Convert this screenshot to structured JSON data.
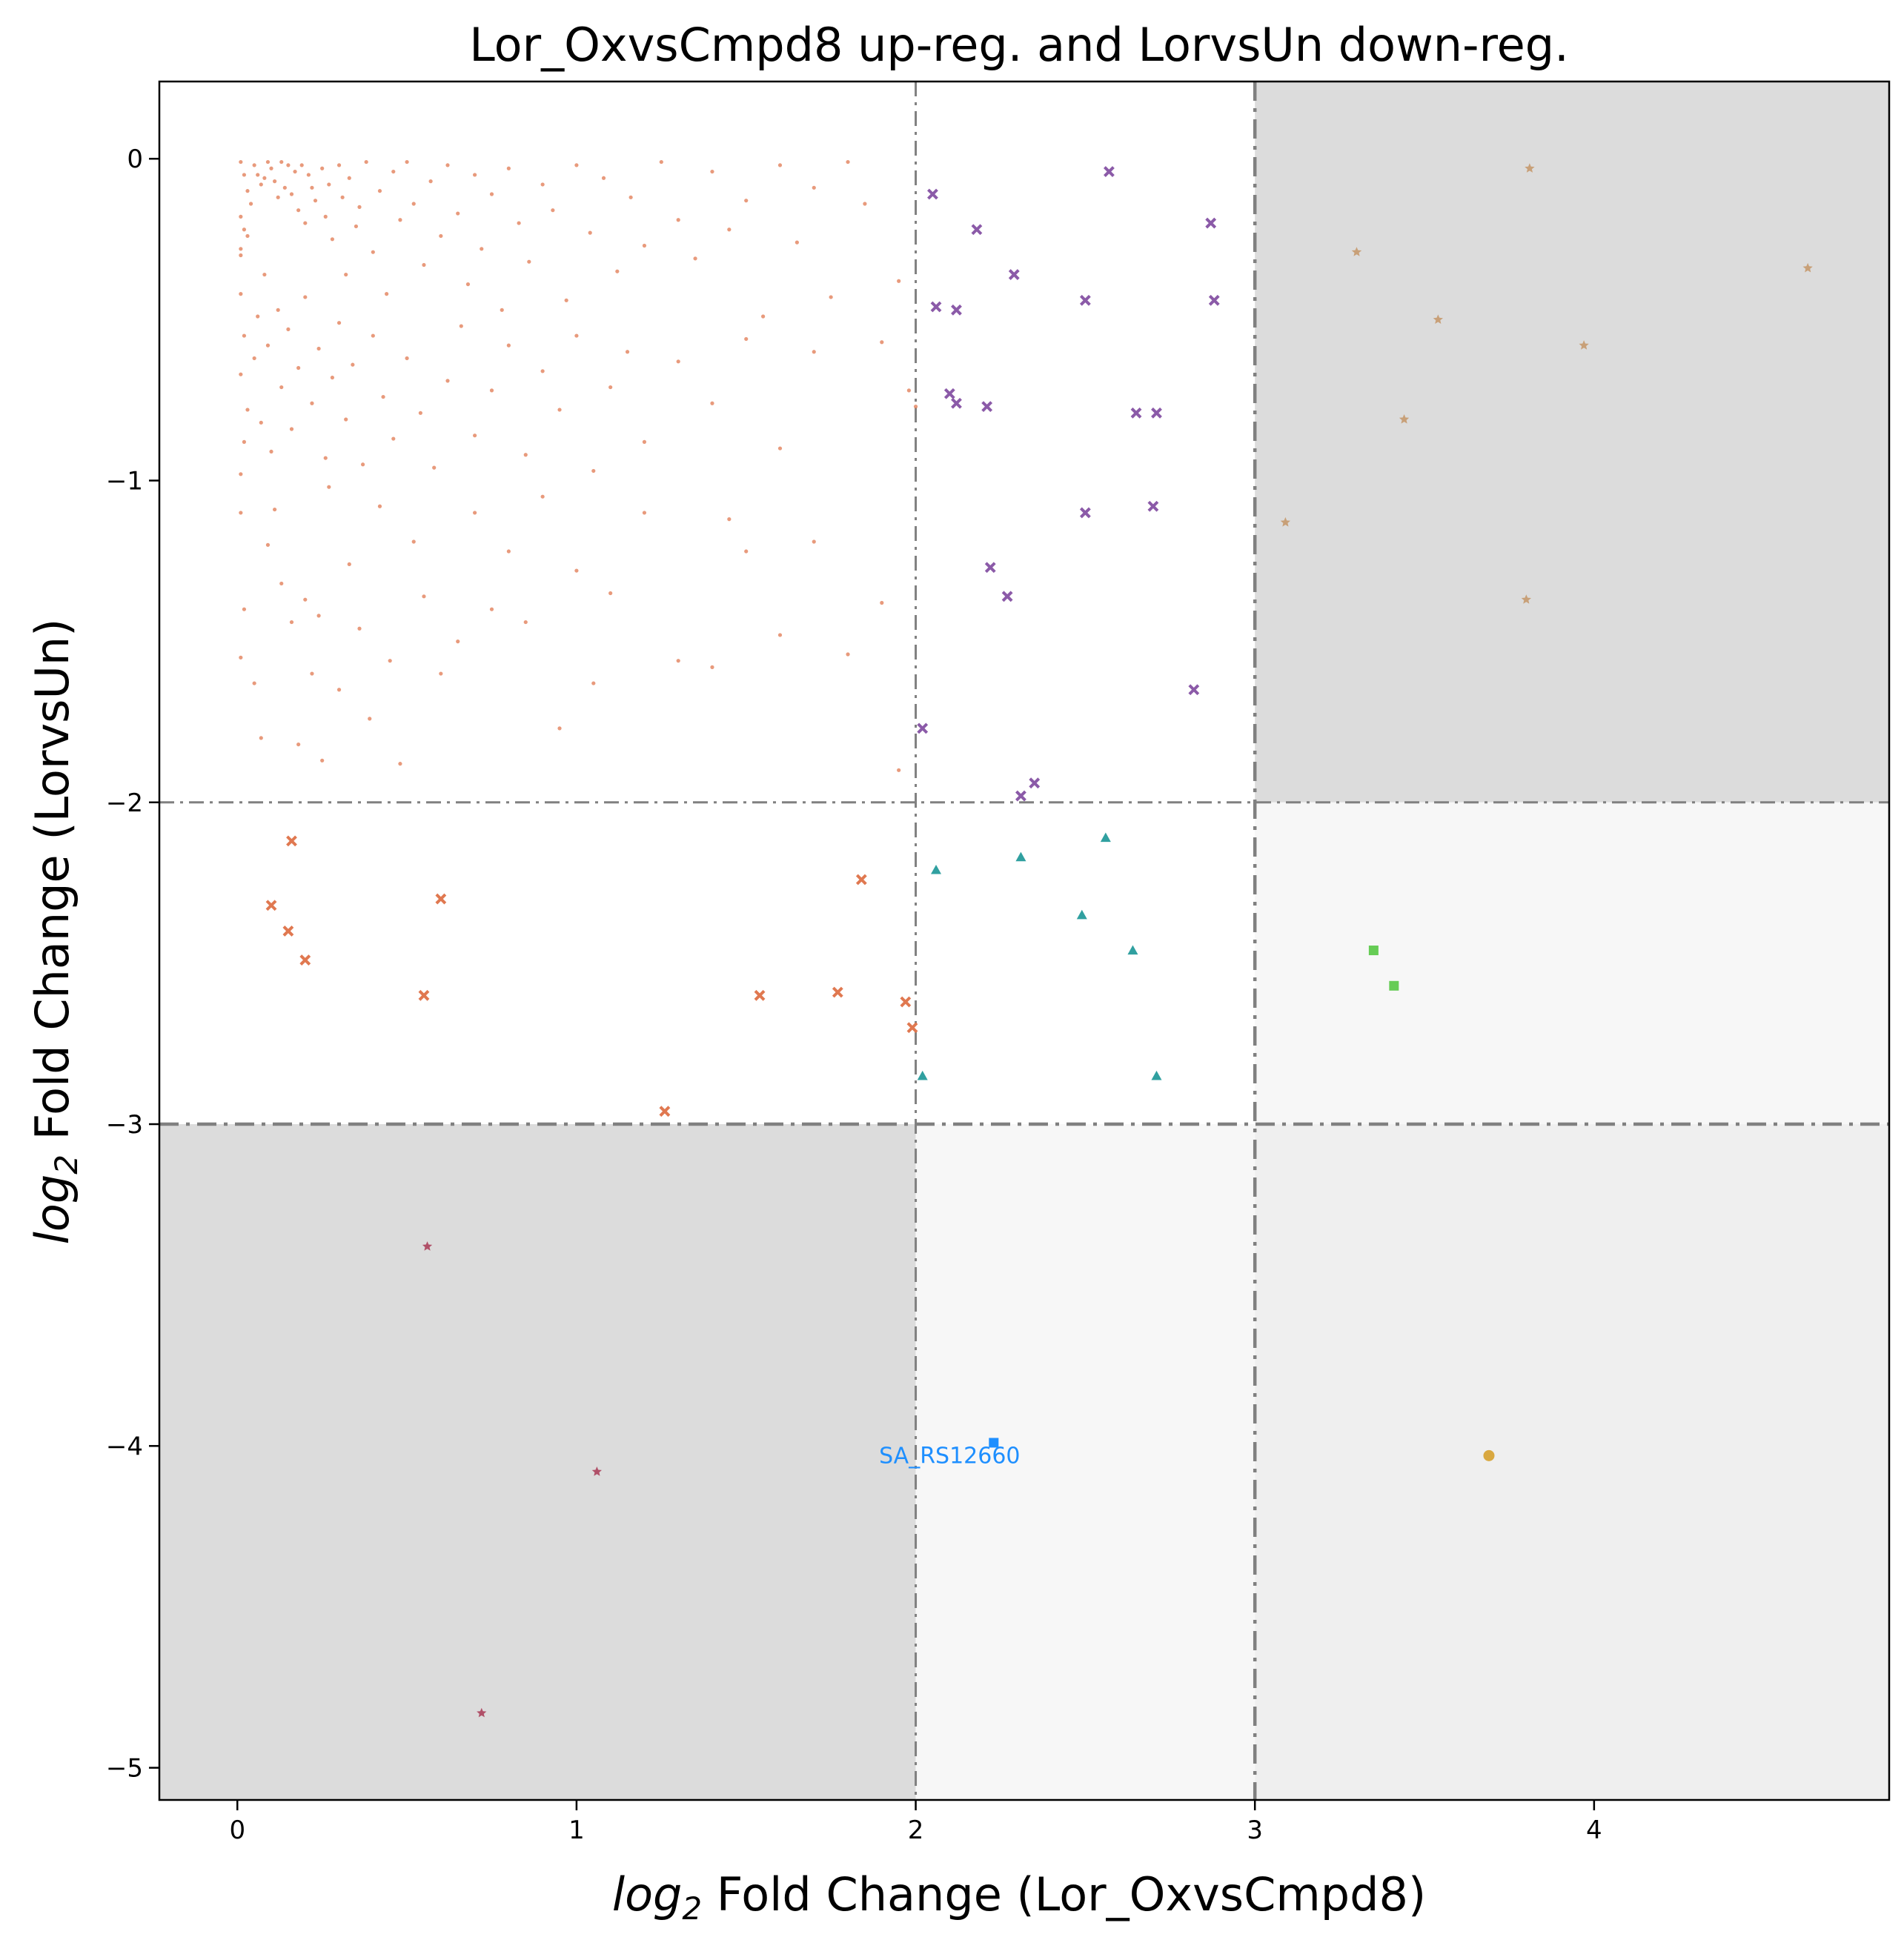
{
  "chart_data": {
    "type": "scatter",
    "title": "Lor_OxvsCmpd8 up-reg. and LorvsUn down-reg.",
    "xlabel_italic": "log",
    "xlabel_sub": "2",
    "xlabel_rest": " Fold Change (Lor_OxvsCmpd8)",
    "ylabel_italic": "log",
    "ylabel_sub": "2",
    "ylabel_rest": " Fold Change (LorvsUn)",
    "xlim": [
      -0.23,
      4.87
    ],
    "ylim": [
      -5.1,
      0.24
    ],
    "xticks": [
      0,
      1,
      2,
      3,
      4
    ],
    "xtick_labels": [
      "0",
      "1",
      "2",
      "3",
      "4"
    ],
    "yticks": [
      0,
      -1,
      -2,
      -3,
      -4,
      -5
    ],
    "ytick_labels": [
      "0",
      "−1",
      "−2",
      "−3",
      "−4",
      "−5"
    ],
    "thresholds": {
      "x": [
        2,
        3
      ],
      "y": [
        -2,
        -3
      ]
    },
    "grid": false,
    "region_colors": {
      "dark": "#dcdcdc",
      "mid": "#efefef",
      "light": "#f7f7f7"
    },
    "threshold_color": "#808080",
    "annotations": [
      {
        "text": "SA_RS12660",
        "x": 2.1,
        "y": -4.03
      }
    ],
    "series": [
      {
        "marker": "dot",
        "color": "#e07850",
        "points": [
          [
            0.01,
            -0.01
          ],
          [
            0.02,
            -0.05
          ],
          [
            0.03,
            -0.1
          ],
          [
            0.01,
            -0.18
          ],
          [
            0.02,
            -0.22
          ],
          [
            0.01,
            -0.28
          ],
          [
            0.01,
            -0.3
          ],
          [
            0.03,
            -0.24
          ],
          [
            0.04,
            -0.14
          ],
          [
            0.05,
            -0.02
          ],
          [
            0.06,
            -0.05
          ],
          [
            0.07,
            -0.08
          ],
          [
            0.08,
            -0.06
          ],
          [
            0.09,
            -0.01
          ],
          [
            0.1,
            -0.03
          ],
          [
            0.11,
            -0.07
          ],
          [
            0.12,
            -0.12
          ],
          [
            0.13,
            -0.01
          ],
          [
            0.14,
            -0.09
          ],
          [
            0.15,
            -0.02
          ],
          [
            0.16,
            -0.11
          ],
          [
            0.17,
            -0.04
          ],
          [
            0.18,
            -0.16
          ],
          [
            0.19,
            -0.02
          ],
          [
            0.2,
            -0.2
          ],
          [
            0.21,
            -0.05
          ],
          [
            0.22,
            -0.09
          ],
          [
            0.23,
            -0.13
          ],
          [
            0.25,
            -0.03
          ],
          [
            0.26,
            -0.18
          ],
          [
            0.27,
            -0.08
          ],
          [
            0.28,
            -0.25
          ],
          [
            0.3,
            -0.02
          ],
          [
            0.31,
            -0.12
          ],
          [
            0.32,
            -0.36
          ],
          [
            0.33,
            -0.06
          ],
          [
            0.35,
            -0.21
          ],
          [
            0.36,
            -0.15
          ],
          [
            0.38,
            -0.01
          ],
          [
            0.4,
            -0.29
          ],
          [
            0.42,
            -0.1
          ],
          [
            0.44,
            -0.42
          ],
          [
            0.46,
            -0.04
          ],
          [
            0.48,
            -0.19
          ],
          [
            0.5,
            -0.01
          ],
          [
            0.52,
            -0.14
          ],
          [
            0.55,
            -0.33
          ],
          [
            0.57,
            -0.07
          ],
          [
            0.6,
            -0.24
          ],
          [
            0.62,
            -0.02
          ],
          [
            0.65,
            -0.17
          ],
          [
            0.68,
            -0.39
          ],
          [
            0.7,
            -0.05
          ],
          [
            0.72,
            -0.28
          ],
          [
            0.75,
            -0.11
          ],
          [
            0.78,
            -0.47
          ],
          [
            0.8,
            -0.03
          ],
          [
            0.83,
            -0.2
          ],
          [
            0.86,
            -0.32
          ],
          [
            0.9,
            -0.08
          ],
          [
            0.93,
            -0.16
          ],
          [
            0.97,
            -0.44
          ],
          [
            1.0,
            -0.02
          ],
          [
            1.04,
            -0.23
          ],
          [
            1.08,
            -0.06
          ],
          [
            1.12,
            -0.35
          ],
          [
            1.16,
            -0.12
          ],
          [
            1.2,
            -0.27
          ],
          [
            1.25,
            -0.01
          ],
          [
            1.3,
            -0.19
          ],
          [
            1.35,
            -0.31
          ],
          [
            1.4,
            -0.04
          ],
          [
            1.45,
            -0.22
          ],
          [
            1.5,
            -0.13
          ],
          [
            1.55,
            -0.49
          ],
          [
            1.6,
            -0.02
          ],
          [
            1.65,
            -0.26
          ],
          [
            1.7,
            -0.09
          ],
          [
            1.75,
            -0.43
          ],
          [
            1.8,
            -0.01
          ],
          [
            1.85,
            -0.14
          ],
          [
            1.9,
            -0.57
          ],
          [
            1.95,
            -0.38
          ],
          [
            1.98,
            -0.72
          ],
          [
            2.0,
            -0.77
          ],
          [
            0.01,
            -0.42
          ],
          [
            0.02,
            -0.55
          ],
          [
            0.01,
            -0.67
          ],
          [
            0.03,
            -0.78
          ],
          [
            0.02,
            -0.88
          ],
          [
            0.01,
            -0.98
          ],
          [
            0.05,
            -0.62
          ],
          [
            0.06,
            -0.49
          ],
          [
            0.07,
            -0.82
          ],
          [
            0.08,
            -0.36
          ],
          [
            0.09,
            -0.58
          ],
          [
            0.1,
            -0.91
          ],
          [
            0.12,
            -0.47
          ],
          [
            0.13,
            -0.71
          ],
          [
            0.15,
            -0.53
          ],
          [
            0.16,
            -0.84
          ],
          [
            0.18,
            -0.65
          ],
          [
            0.2,
            -0.43
          ],
          [
            0.22,
            -0.76
          ],
          [
            0.24,
            -0.59
          ],
          [
            0.26,
            -0.93
          ],
          [
            0.28,
            -0.68
          ],
          [
            0.3,
            -0.51
          ],
          [
            0.32,
            -0.81
          ],
          [
            0.34,
            -0.64
          ],
          [
            0.37,
            -0.95
          ],
          [
            0.4,
            -0.55
          ],
          [
            0.43,
            -0.74
          ],
          [
            0.46,
            -0.87
          ],
          [
            0.5,
            -0.62
          ],
          [
            0.54,
            -0.79
          ],
          [
            0.58,
            -0.96
          ],
          [
            0.62,
            -0.69
          ],
          [
            0.66,
            -0.52
          ],
          [
            0.7,
            -0.86
          ],
          [
            0.75,
            -0.72
          ],
          [
            0.8,
            -0.58
          ],
          [
            0.85,
            -0.92
          ],
          [
            0.9,
            -0.66
          ],
          [
            0.95,
            -0.78
          ],
          [
            1.0,
            -0.55
          ],
          [
            1.05,
            -0.97
          ],
          [
            1.1,
            -0.71
          ],
          [
            1.15,
            -0.6
          ],
          [
            1.2,
            -0.88
          ],
          [
            1.3,
            -0.63
          ],
          [
            1.4,
            -0.76
          ],
          [
            1.5,
            -0.56
          ],
          [
            1.6,
            -0.9
          ],
          [
            1.7,
            -0.6
          ],
          [
            0.01,
            -1.1
          ],
          [
            0.02,
            -1.4
          ],
          [
            0.01,
            -1.55
          ],
          [
            0.05,
            -1.63
          ],
          [
            0.07,
            -1.8
          ],
          [
            0.09,
            -1.2
          ],
          [
            0.11,
            -1.09
          ],
          [
            0.13,
            -1.32
          ],
          [
            0.16,
            -1.44
          ],
          [
            0.18,
            -1.82
          ],
          [
            0.2,
            -1.37
          ],
          [
            0.22,
            -1.6
          ],
          [
            0.24,
            -1.42
          ],
          [
            0.25,
            -1.87
          ],
          [
            0.27,
            -1.02
          ],
          [
            0.3,
            -1.65
          ],
          [
            0.33,
            -1.26
          ],
          [
            0.36,
            -1.46
          ],
          [
            0.39,
            -1.74
          ],
          [
            0.42,
            -1.08
          ],
          [
            0.45,
            -1.56
          ],
          [
            0.48,
            -1.88
          ],
          [
            0.52,
            -1.19
          ],
          [
            0.55,
            -1.36
          ],
          [
            0.6,
            -1.6
          ],
          [
            0.65,
            -1.5
          ],
          [
            0.7,
            -1.1
          ],
          [
            0.75,
            -1.4
          ],
          [
            0.8,
            -1.22
          ],
          [
            0.85,
            -1.44
          ],
          [
            0.9,
            -1.05
          ],
          [
            0.95,
            -1.77
          ],
          [
            1.0,
            -1.28
          ],
          [
            1.05,
            -1.63
          ],
          [
            1.1,
            -1.35
          ],
          [
            1.2,
            -1.1
          ],
          [
            1.3,
            -1.56
          ],
          [
            1.4,
            -1.58
          ],
          [
            1.5,
            -1.22
          ],
          [
            1.6,
            -1.48
          ],
          [
            1.7,
            -1.19
          ],
          [
            1.8,
            -1.54
          ],
          [
            1.9,
            -1.38
          ],
          [
            1.95,
            -1.9
          ],
          [
            1.45,
            -1.12
          ]
        ]
      },
      {
        "marker": "x",
        "color": "#e07850",
        "points": [
          [
            0.1,
            -2.32
          ],
          [
            0.16,
            -2.12
          ],
          [
            0.15,
            -2.4
          ],
          [
            0.2,
            -2.49
          ],
          [
            0.55,
            -2.6
          ],
          [
            0.6,
            -2.3
          ],
          [
            1.26,
            -2.96
          ],
          [
            1.54,
            -2.6
          ],
          [
            1.77,
            -2.59
          ],
          [
            1.84,
            -2.24
          ],
          [
            1.97,
            -2.62
          ],
          [
            1.99,
            -2.7
          ]
        ]
      },
      {
        "marker": "x",
        "color": "#8b5aa8",
        "points": [
          [
            2.02,
            -1.77
          ],
          [
            2.05,
            -0.11
          ],
          [
            2.06,
            -0.46
          ],
          [
            2.1,
            -0.73
          ],
          [
            2.12,
            -0.76
          ],
          [
            2.12,
            -0.47
          ],
          [
            2.18,
            -0.22
          ],
          [
            2.21,
            -0.77
          ],
          [
            2.22,
            -1.27
          ],
          [
            2.27,
            -1.36
          ],
          [
            2.29,
            -0.36
          ],
          [
            2.31,
            -1.98
          ],
          [
            2.35,
            -1.94
          ],
          [
            2.5,
            -0.44
          ],
          [
            2.5,
            -1.1
          ],
          [
            2.57,
            -0.04
          ],
          [
            2.65,
            -0.79
          ],
          [
            2.7,
            -1.08
          ],
          [
            2.71,
            -0.79
          ],
          [
            2.82,
            -1.65
          ],
          [
            2.87,
            -0.2
          ],
          [
            2.88,
            -0.44
          ]
        ]
      },
      {
        "marker": "triangle",
        "color": "#30a0a0",
        "points": [
          [
            2.02,
            -2.85
          ],
          [
            2.06,
            -2.21
          ],
          [
            2.31,
            -2.17
          ],
          [
            2.49,
            -2.35
          ],
          [
            2.56,
            -2.11
          ],
          [
            2.64,
            -2.46
          ],
          [
            2.71,
            -2.85
          ]
        ]
      },
      {
        "marker": "star",
        "color": "#c8a078",
        "points": [
          [
            3.09,
            -1.13
          ],
          [
            3.3,
            -0.29
          ],
          [
            3.44,
            -0.81
          ],
          [
            3.54,
            -0.5
          ],
          [
            3.8,
            -1.37
          ],
          [
            3.81,
            -0.03
          ],
          [
            3.97,
            -0.58
          ],
          [
            4.63,
            -0.34
          ]
        ]
      },
      {
        "marker": "square",
        "color": "#66cc55",
        "points": [
          [
            3.35,
            -2.46
          ],
          [
            3.41,
            -2.57
          ]
        ]
      },
      {
        "marker": "star",
        "color": "#b05068",
        "points": [
          [
            0.56,
            -3.38
          ],
          [
            1.06,
            -4.08
          ],
          [
            0.72,
            -4.83
          ]
        ]
      },
      {
        "marker": "square",
        "color": "#1e8fff",
        "points": [
          [
            2.23,
            -3.99
          ]
        ]
      },
      {
        "marker": "circle",
        "color": "#d9a840",
        "points": [
          [
            3.69,
            -4.03
          ]
        ]
      }
    ]
  }
}
